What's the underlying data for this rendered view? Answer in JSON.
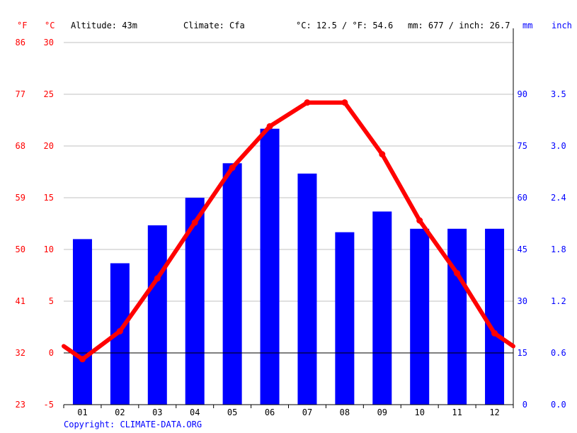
{
  "header": {
    "unit_f": "°F",
    "unit_c": "°C",
    "altitude": "Altitude: 43m",
    "climate": "Climate: Cfa",
    "avg_temp": "°C: 12.5 / °F: 54.6",
    "precip_total": "mm: 677 / inch: 26.7",
    "unit_mm": "mm",
    "unit_inch": "inch"
  },
  "copyright": "Copyright: CLIMATE-DATA.ORG",
  "colors": {
    "temperature": "#ff0000",
    "precipitation": "#0000ff",
    "grid": "#c0c0c0",
    "zero_line": "#000000"
  },
  "chart_data": {
    "type": "bar",
    "categories": [
      "01",
      "02",
      "03",
      "04",
      "05",
      "06",
      "07",
      "08",
      "09",
      "10",
      "11",
      "12"
    ],
    "series": [
      {
        "type": "bar",
        "axis": "right",
        "values": [
          48,
          41,
          52,
          60,
          70,
          80,
          67,
          50,
          56,
          51,
          51,
          51
        ]
      },
      {
        "type": "line",
        "axis": "left",
        "values": [
          -0.6,
          2.1,
          7.2,
          12.6,
          17.9,
          21.9,
          24.2,
          24.2,
          19.2,
          12.8,
          7.7,
          1.9
        ]
      }
    ],
    "left_axis_c": {
      "min": -5,
      "max": 30,
      "ticks": [
        "-5",
        "0",
        "5",
        "10",
        "15",
        "20",
        "25",
        "30"
      ]
    },
    "left_axis_f": {
      "ticks": [
        "23",
        "32",
        "41",
        "50",
        "59",
        "68",
        "77",
        "86"
      ]
    },
    "right_axis_mm": {
      "min": 0,
      "max": 105,
      "ticks": [
        "0",
        "15",
        "30",
        "45",
        "60",
        "75",
        "90"
      ]
    },
    "right_axis_inch": {
      "ticks": [
        "0.0",
        "0.6",
        "1.2",
        "1.8",
        "2.4",
        "3.0",
        "3.5"
      ]
    },
    "grid": true
  }
}
